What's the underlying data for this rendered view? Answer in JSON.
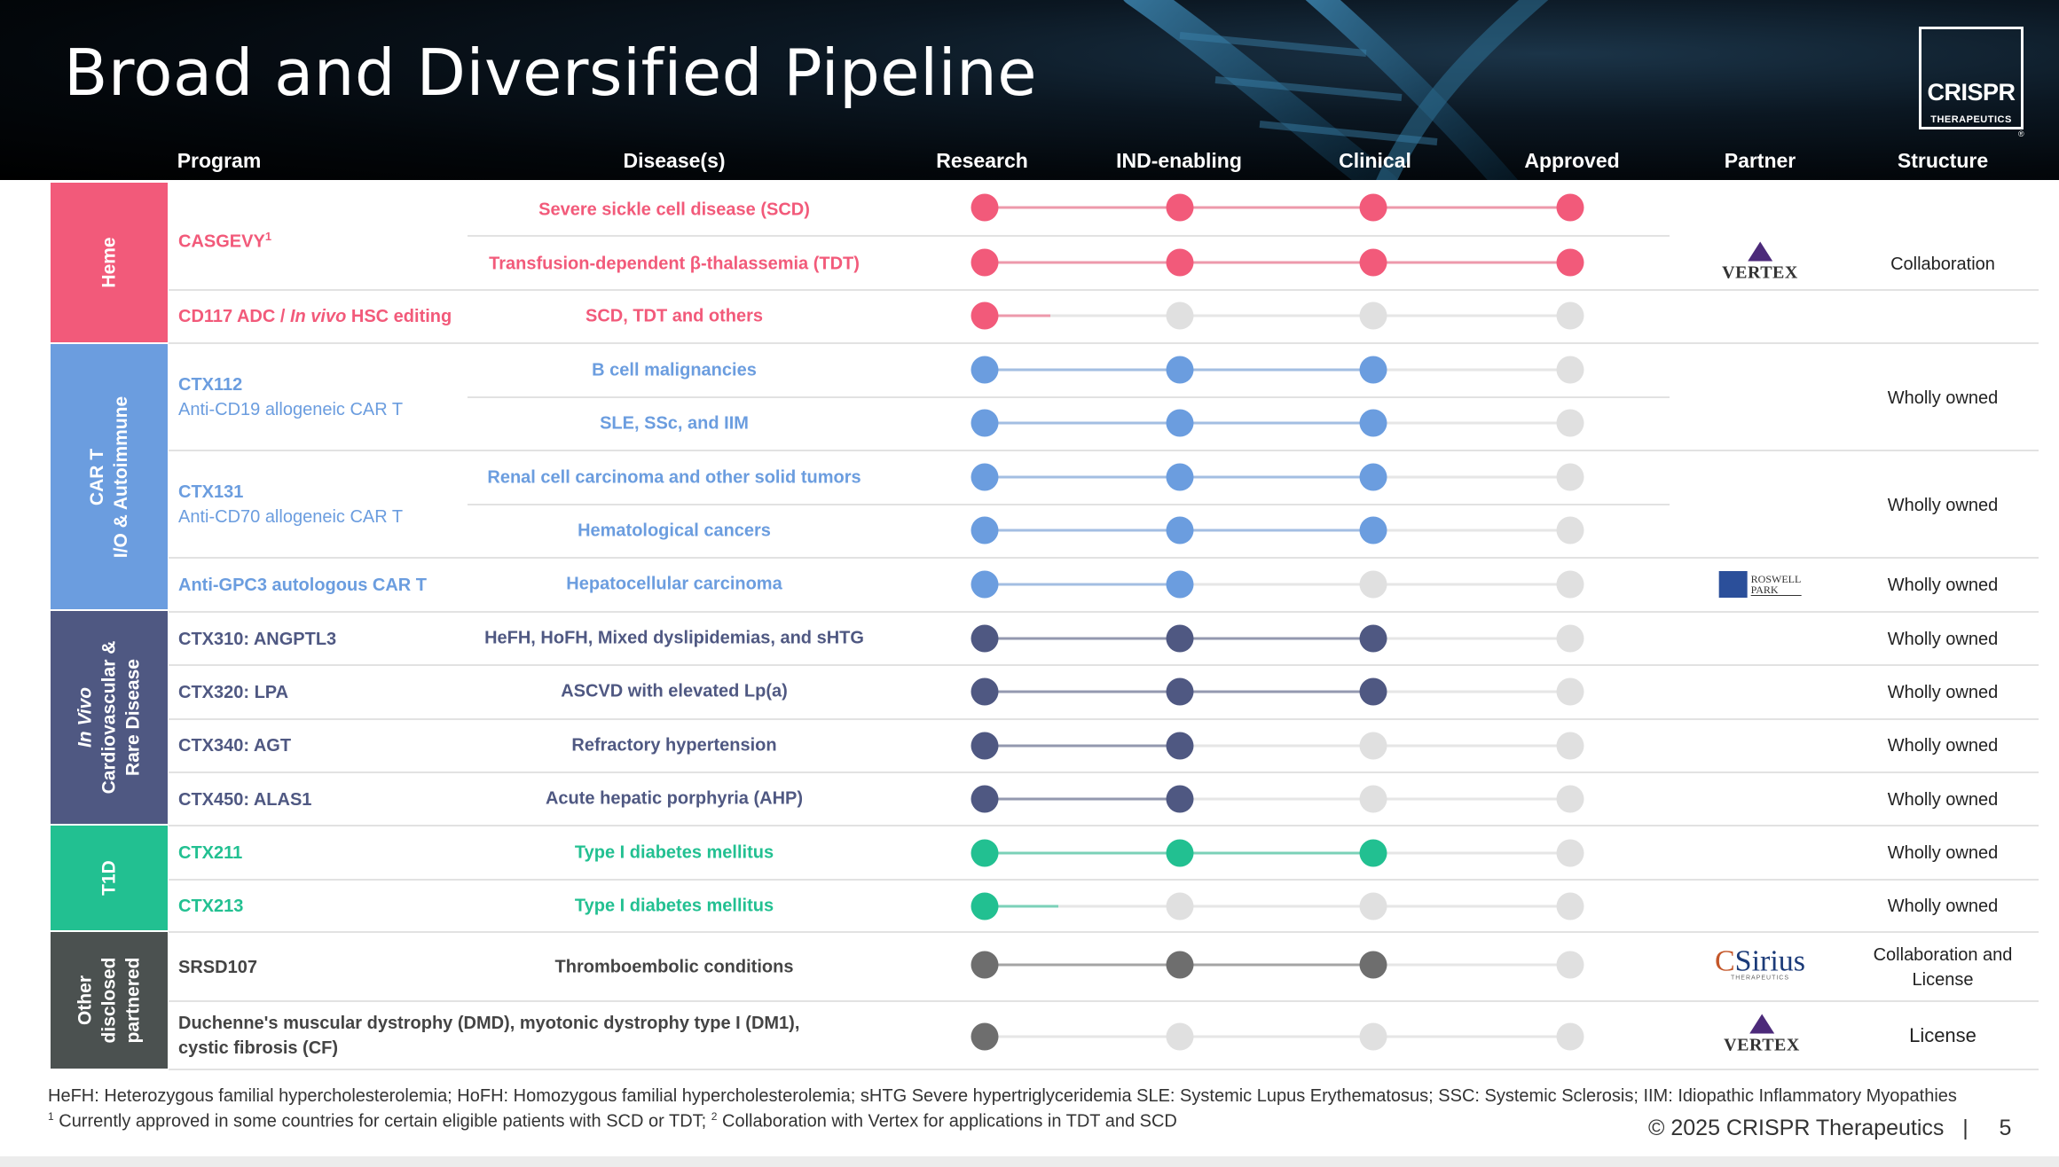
{
  "title": "Broad and Diversified Pipeline",
  "logo": {
    "line1": "CRISPR",
    "line2": "THERAPEUTICS",
    "mark": "®"
  },
  "columns": {
    "program": "Program",
    "disease": "Disease(s)",
    "research": "Research",
    "ind": "IND-enabling",
    "clinical": "Clinical",
    "approved": "Approved",
    "partner": "Partner",
    "structure": "Structure"
  },
  "colors": {
    "heme": "#f25a7a",
    "cart": "#6b9ddf",
    "invivo": "#4f5882",
    "t1d": "#22c091",
    "other": "#4b5150",
    "inactive_dot": "#e0e0e0"
  },
  "categories": [
    {
      "id": "heme",
      "lines": [
        "Heme"
      ],
      "color": "#f25a7a"
    },
    {
      "id": "cart",
      "lines": [
        "CAR T",
        "I/O & Autoimmune"
      ],
      "color": "#6b9ddf"
    },
    {
      "id": "invivo",
      "lines": [
        "In Vivo",
        "Cardiovascular &",
        "Rare Disease"
      ],
      "color": "#4f5882"
    },
    {
      "id": "t1d",
      "lines": [
        "T1D"
      ],
      "color": "#22c091"
    },
    {
      "id": "other",
      "lines": [
        "Other",
        "disclosed",
        "partnered"
      ],
      "color": "#4b5150"
    }
  ],
  "rows": [
    {
      "disease": "Severe sickle cell disease (SCD)",
      "stage": 4,
      "color": "#f25a7a",
      "progress_fraction": 1.0
    },
    {
      "disease": "Transfusion-dependent β-thalassemia (TDT)",
      "stage": 4,
      "color": "#f25a7a",
      "progress_fraction": 1.0
    },
    {
      "disease": "SCD, TDT and others",
      "stage": 1,
      "color": "#f25a7a",
      "progress_fraction": 0.45
    },
    {
      "disease": "B cell malignancies",
      "stage": 3,
      "color": "#6b9ddf",
      "progress_fraction": 1.0
    },
    {
      "disease": "SLE, SSc, and IIM",
      "stage": 3,
      "color": "#6b9ddf",
      "progress_fraction": 1.0
    },
    {
      "disease": "Renal cell carcinoma and other solid tumors",
      "stage": 3,
      "color": "#6b9ddf",
      "progress_fraction": 1.0
    },
    {
      "disease": "Hematological cancers",
      "stage": 3,
      "color": "#6b9ddf",
      "progress_fraction": 1.0
    },
    {
      "disease": "Hepatocellular carcinoma",
      "stage": 2,
      "color": "#6b9ddf",
      "progress_fraction": 1.0
    },
    {
      "disease": "HeFH, HoFH, Mixed dyslipidemias, and sHTG",
      "stage": 3,
      "color": "#4f5882",
      "progress_fraction": 1.0
    },
    {
      "disease": "ASCVD with elevated Lp(a)",
      "stage": 3,
      "color": "#4f5882",
      "progress_fraction": 1.0
    },
    {
      "disease": "Refractory hypertension",
      "stage": 2,
      "color": "#4f5882",
      "progress_fraction": 1.0
    },
    {
      "disease": "Acute hepatic porphyria (AHP)",
      "stage": 2,
      "color": "#4f5882",
      "progress_fraction": 1.0
    },
    {
      "disease": "Type I diabetes mellitus",
      "stage": 3,
      "color": "#22c091",
      "progress_fraction": 1.0
    },
    {
      "disease": "Type I diabetes mellitus",
      "stage": 1,
      "color": "#22c091",
      "progress_fraction": 0.5
    },
    {
      "disease": "Thromboembolic conditions",
      "stage": 3,
      "color": "#6e6e6e",
      "progress_fraction": 1.0
    },
    {
      "disease": "",
      "stage": 1,
      "color": "#6e6e6e",
      "progress_fraction": 0
    }
  ],
  "programs": [
    {
      "name": "CASGEVY",
      "sup": "1",
      "color": "#f25a7a"
    },
    {
      "name_pre": "CD117 ADC / ",
      "name_it": "In vivo",
      "name_post": " HSC editing",
      "color": "#f25a7a"
    },
    {
      "name": "CTX112",
      "sub": "Anti-CD19 allogeneic CAR T",
      "color": "#6b9ddf"
    },
    {
      "name": "CTX131",
      "sub": "Anti-CD70 allogeneic CAR T",
      "color": "#6b9ddf"
    },
    {
      "name": "Anti-GPC3 autologous CAR T",
      "color": "#6b9ddf"
    },
    {
      "name": "CTX310: ANGPTL3",
      "color": "#4f5882"
    },
    {
      "name": "CTX320: LPA",
      "color": "#4f5882"
    },
    {
      "name": "CTX340: AGT",
      "color": "#4f5882"
    },
    {
      "name": "CTX450: ALAS1",
      "color": "#4f5882"
    },
    {
      "name": "CTX211",
      "color": "#22c091"
    },
    {
      "name": "CTX213",
      "color": "#22c091"
    },
    {
      "name": "SRSD107",
      "color": "#444444"
    },
    {
      "line1": "Duchenne's muscular dystrophy (DMD), myotonic dystrophy type I (DM1),",
      "line2": "cystic fibrosis (CF)",
      "color": "#444444"
    }
  ],
  "partners": {
    "vertex": "VERTEX",
    "roswell_line1": "ROSWELL",
    "roswell_line2": "PARK",
    "sirius_c": "C",
    "sirius_main": "Sirius",
    "sirius_sub": "THERAPEUTICS"
  },
  "structures": {
    "collaboration": "Collaboration",
    "wholly": "Wholly owned",
    "collab_license_1": "Collaboration and",
    "collab_license_2": "License",
    "license": "License"
  },
  "footnotes": {
    "abbrev": "HeFH: Heterozygous familial hypercholesterolemia; HoFH: Homozygous familial hypercholesterolemia; sHTG Severe hypertriglyceridemia SLE: Systemic Lupus Erythematosus; SSC: Systemic Sclerosis; IIM: Idiopathic Inflammatory Myopathies",
    "note1_sup": "1",
    "note1": " Currently approved in some countries for certain eligible patients with SCD or TDT; ",
    "note2_sup": "2",
    "note2": " Collaboration with Vertex for applications in TDT and SCD",
    "copyright": "© 2025 CRISPR Therapeutics   |     5"
  }
}
